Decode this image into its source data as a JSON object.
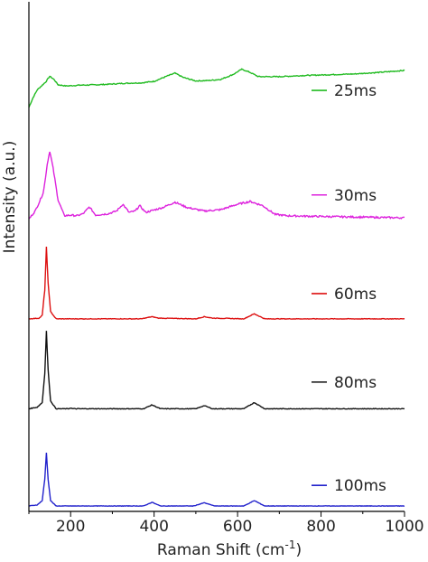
{
  "chart_data": {
    "type": "line",
    "xlabel": "Raman Shift (cm",
    "xlabel_superscript": "-1",
    "xlabel_suffix": ")",
    "ylabel": "Intensity (a.u.)",
    "xlim": [
      100,
      1000
    ],
    "x_ticks": [
      200,
      400,
      600,
      800,
      1000
    ],
    "y_ticks": false,
    "grid": false,
    "legend_placement": "right, beside each trace",
    "series": [
      {
        "name": "25ms",
        "color": "#22bb22",
        "baseline": 0.82,
        "scale": 0.08,
        "points": [
          [
            100,
            0.0
          ],
          [
            110,
            0.25
          ],
          [
            120,
            0.45
          ],
          [
            130,
            0.55
          ],
          [
            140,
            0.65
          ],
          [
            150,
            0.8
          ],
          [
            160,
            0.72
          ],
          [
            170,
            0.58
          ],
          [
            190,
            0.55
          ],
          [
            220,
            0.57
          ],
          [
            260,
            0.58
          ],
          [
            300,
            0.6
          ],
          [
            330,
            0.62
          ],
          [
            370,
            0.63
          ],
          [
            400,
            0.67
          ],
          [
            430,
            0.8
          ],
          [
            450,
            0.88
          ],
          [
            470,
            0.77
          ],
          [
            500,
            0.68
          ],
          [
            530,
            0.69
          ],
          [
            560,
            0.72
          ],
          [
            590,
            0.85
          ],
          [
            610,
            0.98
          ],
          [
            630,
            0.9
          ],
          [
            650,
            0.79
          ],
          [
            700,
            0.79
          ],
          [
            760,
            0.82
          ],
          [
            820,
            0.84
          ],
          [
            880,
            0.86
          ],
          [
            940,
            0.9
          ],
          [
            1000,
            0.95
          ]
        ]
      },
      {
        "name": "30ms",
        "color": "#dd22dd",
        "baseline": 0.59,
        "scale": 0.14,
        "points": [
          [
            100,
            0.0
          ],
          [
            115,
            0.12
          ],
          [
            125,
            0.25
          ],
          [
            135,
            0.4
          ],
          [
            145,
            0.85
          ],
          [
            150,
            1.0
          ],
          [
            158,
            0.75
          ],
          [
            170,
            0.28
          ],
          [
            185,
            0.05
          ],
          [
            200,
            0.06
          ],
          [
            215,
            0.05
          ],
          [
            230,
            0.08
          ],
          [
            245,
            0.18
          ],
          [
            260,
            0.06
          ],
          [
            290,
            0.08
          ],
          [
            310,
            0.12
          ],
          [
            325,
            0.22
          ],
          [
            340,
            0.1
          ],
          [
            355,
            0.12
          ],
          [
            365,
            0.2
          ],
          [
            380,
            0.1
          ],
          [
            420,
            0.17
          ],
          [
            450,
            0.25
          ],
          [
            480,
            0.17
          ],
          [
            520,
            0.12
          ],
          [
            560,
            0.14
          ],
          [
            600,
            0.22
          ],
          [
            630,
            0.26
          ],
          [
            660,
            0.2
          ],
          [
            690,
            0.07
          ],
          [
            720,
            0.05
          ],
          [
            800,
            0.04
          ],
          [
            900,
            0.03
          ],
          [
            1000,
            0.02
          ]
        ]
      },
      {
        "name": "60ms",
        "color": "#dd1111",
        "baseline": 0.385,
        "scale": 0.148,
        "points": [
          [
            100,
            0.0
          ],
          [
            125,
            0.01
          ],
          [
            132,
            0.05
          ],
          [
            138,
            0.4
          ],
          [
            142,
            1.0
          ],
          [
            146,
            0.5
          ],
          [
            152,
            0.1
          ],
          [
            165,
            0.0
          ],
          [
            370,
            0.0
          ],
          [
            395,
            0.03
          ],
          [
            410,
            0.01
          ],
          [
            500,
            0.0
          ],
          [
            520,
            0.03
          ],
          [
            540,
            0.01
          ],
          [
            615,
            0.0
          ],
          [
            640,
            0.07
          ],
          [
            665,
            0.0
          ],
          [
            1000,
            0.0
          ]
        ]
      },
      {
        "name": "80ms",
        "color": "#111111",
        "baseline": 0.2,
        "scale": 0.16,
        "points": [
          [
            100,
            0.0
          ],
          [
            120,
            0.02
          ],
          [
            132,
            0.08
          ],
          [
            138,
            0.45
          ],
          [
            142,
            1.0
          ],
          [
            146,
            0.5
          ],
          [
            152,
            0.1
          ],
          [
            165,
            0.0
          ],
          [
            195,
            0.0
          ],
          [
            200,
            0.01
          ],
          [
            205,
            0.0
          ],
          [
            375,
            0.0
          ],
          [
            395,
            0.05
          ],
          [
            415,
            0.0
          ],
          [
            500,
            0.0
          ],
          [
            520,
            0.04
          ],
          [
            540,
            0.0
          ],
          [
            615,
            0.0
          ],
          [
            640,
            0.08
          ],
          [
            665,
            0.0
          ],
          [
            1000,
            0.0
          ]
        ]
      },
      {
        "name": "100ms",
        "color": "#2222cc",
        "baseline": 0.0,
        "scale": 0.11,
        "points": [
          [
            100,
            0.0
          ],
          [
            120,
            0.02
          ],
          [
            132,
            0.1
          ],
          [
            138,
            0.5
          ],
          [
            142,
            1.0
          ],
          [
            146,
            0.5
          ],
          [
            152,
            0.1
          ],
          [
            165,
            0.0
          ],
          [
            375,
            0.0
          ],
          [
            395,
            0.07
          ],
          [
            415,
            0.0
          ],
          [
            495,
            0.0
          ],
          [
            520,
            0.06
          ],
          [
            545,
            0.0
          ],
          [
            615,
            0.0
          ],
          [
            640,
            0.1
          ],
          [
            665,
            0.0
          ],
          [
            1000,
            0.0
          ]
        ]
      }
    ]
  }
}
